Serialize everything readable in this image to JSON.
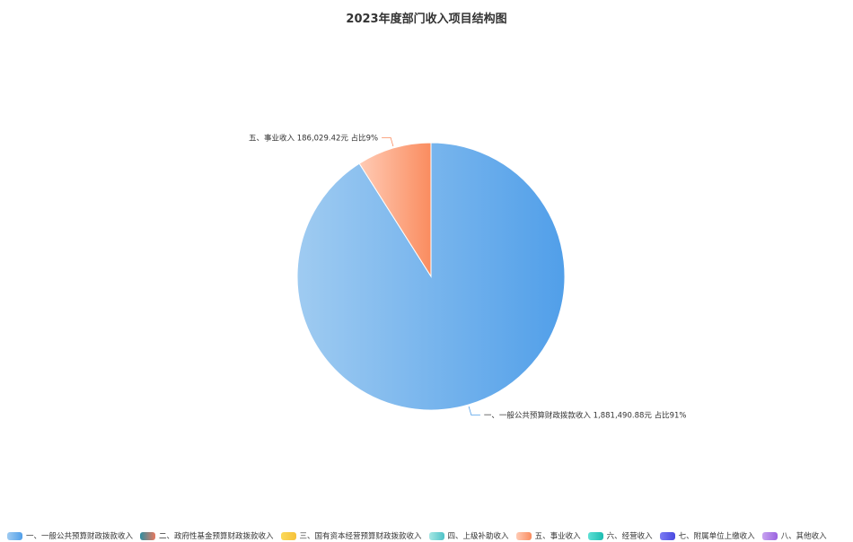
{
  "chart_data": {
    "type": "pie",
    "title": "2023年度部门收入项目结构图",
    "slices": [
      {
        "name": "一、一般公共预算财政拨款收入",
        "value": 1881490.88,
        "value_label": "1,881,490.88元",
        "percent_label": "占比91%",
        "color_from": "#9fcbf1",
        "color_to": "#519fe9"
      },
      {
        "name": "二、政府性基金预算财政拨款收入",
        "value": 0,
        "color_from": "#2f8ea1",
        "color_to": "#e77960"
      },
      {
        "name": "三、国有资本经营预算财政拨款收入",
        "value": 0,
        "color_from": "#fbd95a",
        "color_to": "#f6c23a"
      },
      {
        "name": "四、上级补助收入",
        "value": 0,
        "color_from": "#a6e7e4",
        "color_to": "#4fc3c8"
      },
      {
        "name": "五、事业收入",
        "value": 186029.42,
        "value_label": "186,029.42元",
        "percent_label": "占比9%",
        "color_from": "#ffcbb5",
        "color_to": "#fa8c5f"
      },
      {
        "name": "六、经营收入",
        "value": 0,
        "color_from": "#5ee0d5",
        "color_to": "#1cbcb1"
      },
      {
        "name": "七、附属单位上缴收入",
        "value": 0,
        "color_from": "#7c7cf3",
        "color_to": "#4a4ae0"
      },
      {
        "name": "八、其他收入",
        "value": 0,
        "color_from": "#c8a3f0",
        "color_to": "#9a63e0"
      }
    ],
    "legend_position": "bottom"
  }
}
